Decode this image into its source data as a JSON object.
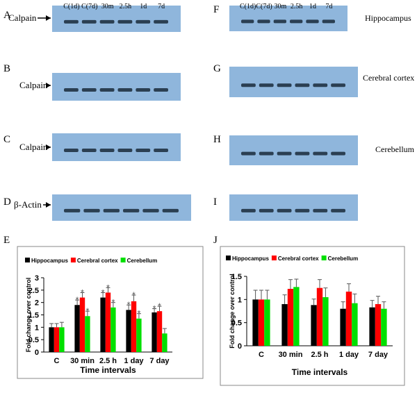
{
  "lane_labels": [
    "C(1d)",
    "C(7d)",
    "30m",
    "2.5h",
    "1d",
    "7d"
  ],
  "blots": [
    {
      "letter": "A",
      "protein": "Calpain"
    },
    {
      "letter": "B",
      "protein": "Calpain"
    },
    {
      "letter": "C",
      "protein": "Calpain"
    },
    {
      "letter": "D",
      "protein": "β-Actin"
    },
    {
      "letter": "F",
      "region": "Hippocampus"
    },
    {
      "letter": "G",
      "region": "Cerebral cortex"
    },
    {
      "letter": "H",
      "region": "Cerebellum"
    },
    {
      "letter": "I"
    }
  ],
  "chart_data": [
    {
      "type": "bar",
      "panel": "E",
      "ylabel": "Fold change over control",
      "xlabel": "Time intervals",
      "categories": [
        "C",
        "30 min",
        "2.5 h",
        "1 day",
        "7 day"
      ],
      "ylim": [
        0,
        3
      ],
      "yticks": [
        0,
        0.5,
        1,
        1.5,
        2,
        2.5,
        3
      ],
      "marker": "*",
      "series": [
        {
          "name": "Hippocampus",
          "color": "#000000",
          "values": [
            1,
            1.9,
            2.2,
            1.7,
            1.6
          ],
          "errors": [
            0.15,
            0.2,
            0.2,
            0.2,
            0.15
          ],
          "significant": [
            false,
            true,
            true,
            true,
            true
          ]
        },
        {
          "name": "Cerebral cortex",
          "color": "#ff0000",
          "values": [
            1,
            2.2,
            2.4,
            2.05,
            1.65
          ],
          "errors": [
            0.15,
            0.2,
            0.2,
            0.25,
            0.2
          ],
          "significant": [
            false,
            true,
            true,
            true,
            true
          ]
        },
        {
          "name": "Cerebellum",
          "color": "#00e000",
          "values": [
            1,
            1.45,
            1.8,
            1.35,
            0.75
          ],
          "errors": [
            0.2,
            0.2,
            0.2,
            0.2,
            0.2
          ],
          "significant": [
            false,
            true,
            true,
            true,
            false
          ]
        }
      ]
    },
    {
      "type": "bar",
      "panel": "J",
      "ylabel": "Fold change over control",
      "xlabel": "Time intervals",
      "categories": [
        "C",
        "30 min",
        "2.5 h",
        "1 day",
        "7 day"
      ],
      "ylim": [
        0,
        1.5
      ],
      "yticks": [
        0,
        0.5,
        1,
        1.5
      ],
      "marker": "*",
      "series": [
        {
          "name": "Hippocampus",
          "color": "#000000",
          "values": [
            1,
            0.9,
            0.88,
            0.8,
            0.83
          ],
          "errors": [
            0.2,
            0.2,
            0.13,
            0.15,
            0.15
          ],
          "significant": [
            false,
            false,
            false,
            false,
            false
          ]
        },
        {
          "name": "Cerebral cortex",
          "color": "#ff0000",
          "values": [
            1,
            1.23,
            1.25,
            1.17,
            0.9
          ],
          "errors": [
            0.2,
            0.2,
            0.18,
            0.17,
            0.17
          ],
          "significant": [
            false,
            false,
            false,
            false,
            false
          ]
        },
        {
          "name": "Cerebellum",
          "color": "#00e000",
          "values": [
            1,
            1.27,
            1.05,
            0.92,
            0.8
          ],
          "errors": [
            0.2,
            0.17,
            0.2,
            0.2,
            0.15
          ],
          "significant": [
            false,
            false,
            false,
            false,
            false
          ]
        }
      ]
    }
  ]
}
